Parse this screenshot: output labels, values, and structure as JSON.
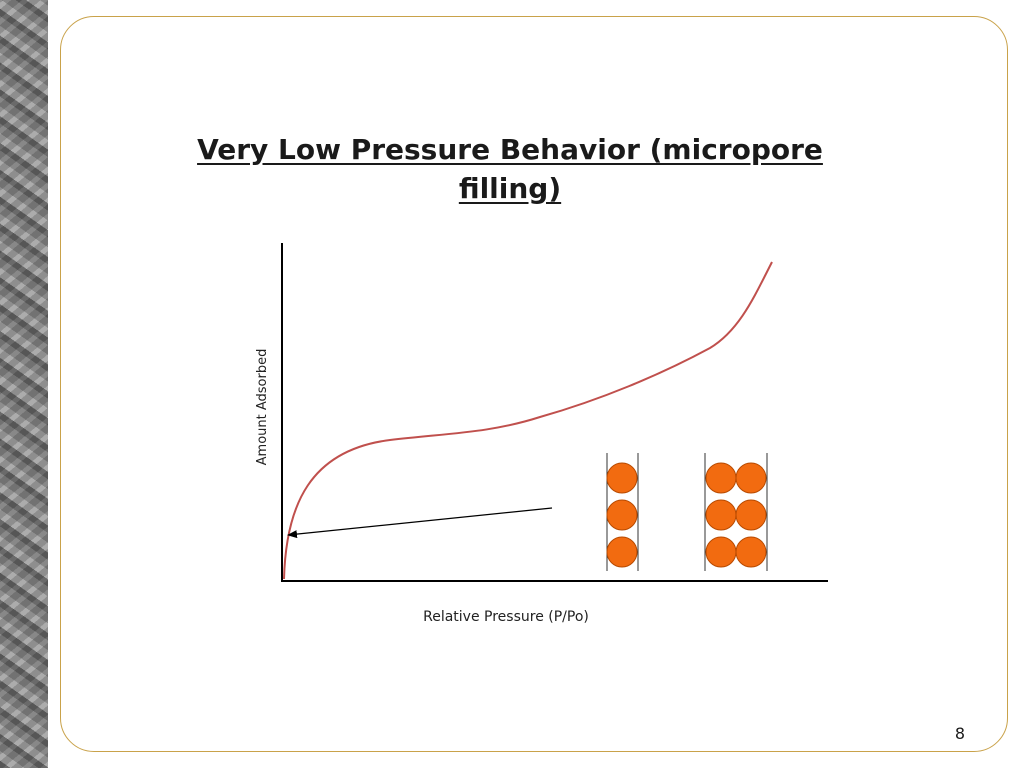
{
  "slide": {
    "title": "Very Low Pressure Behavior (micropore filling)",
    "page_number": "8"
  },
  "diagram": {
    "y_axis_label": "Amount Adsorbed",
    "x_axis_label": "Relative Pressure (P/Po)",
    "curve_color": "#c0504d",
    "pore_fill_color": "#f26b10",
    "pore_stroke_color": "#b84a00",
    "pores": [
      {
        "columns": 1,
        "rows": 3
      },
      {
        "columns": 2,
        "rows": 3
      }
    ]
  }
}
